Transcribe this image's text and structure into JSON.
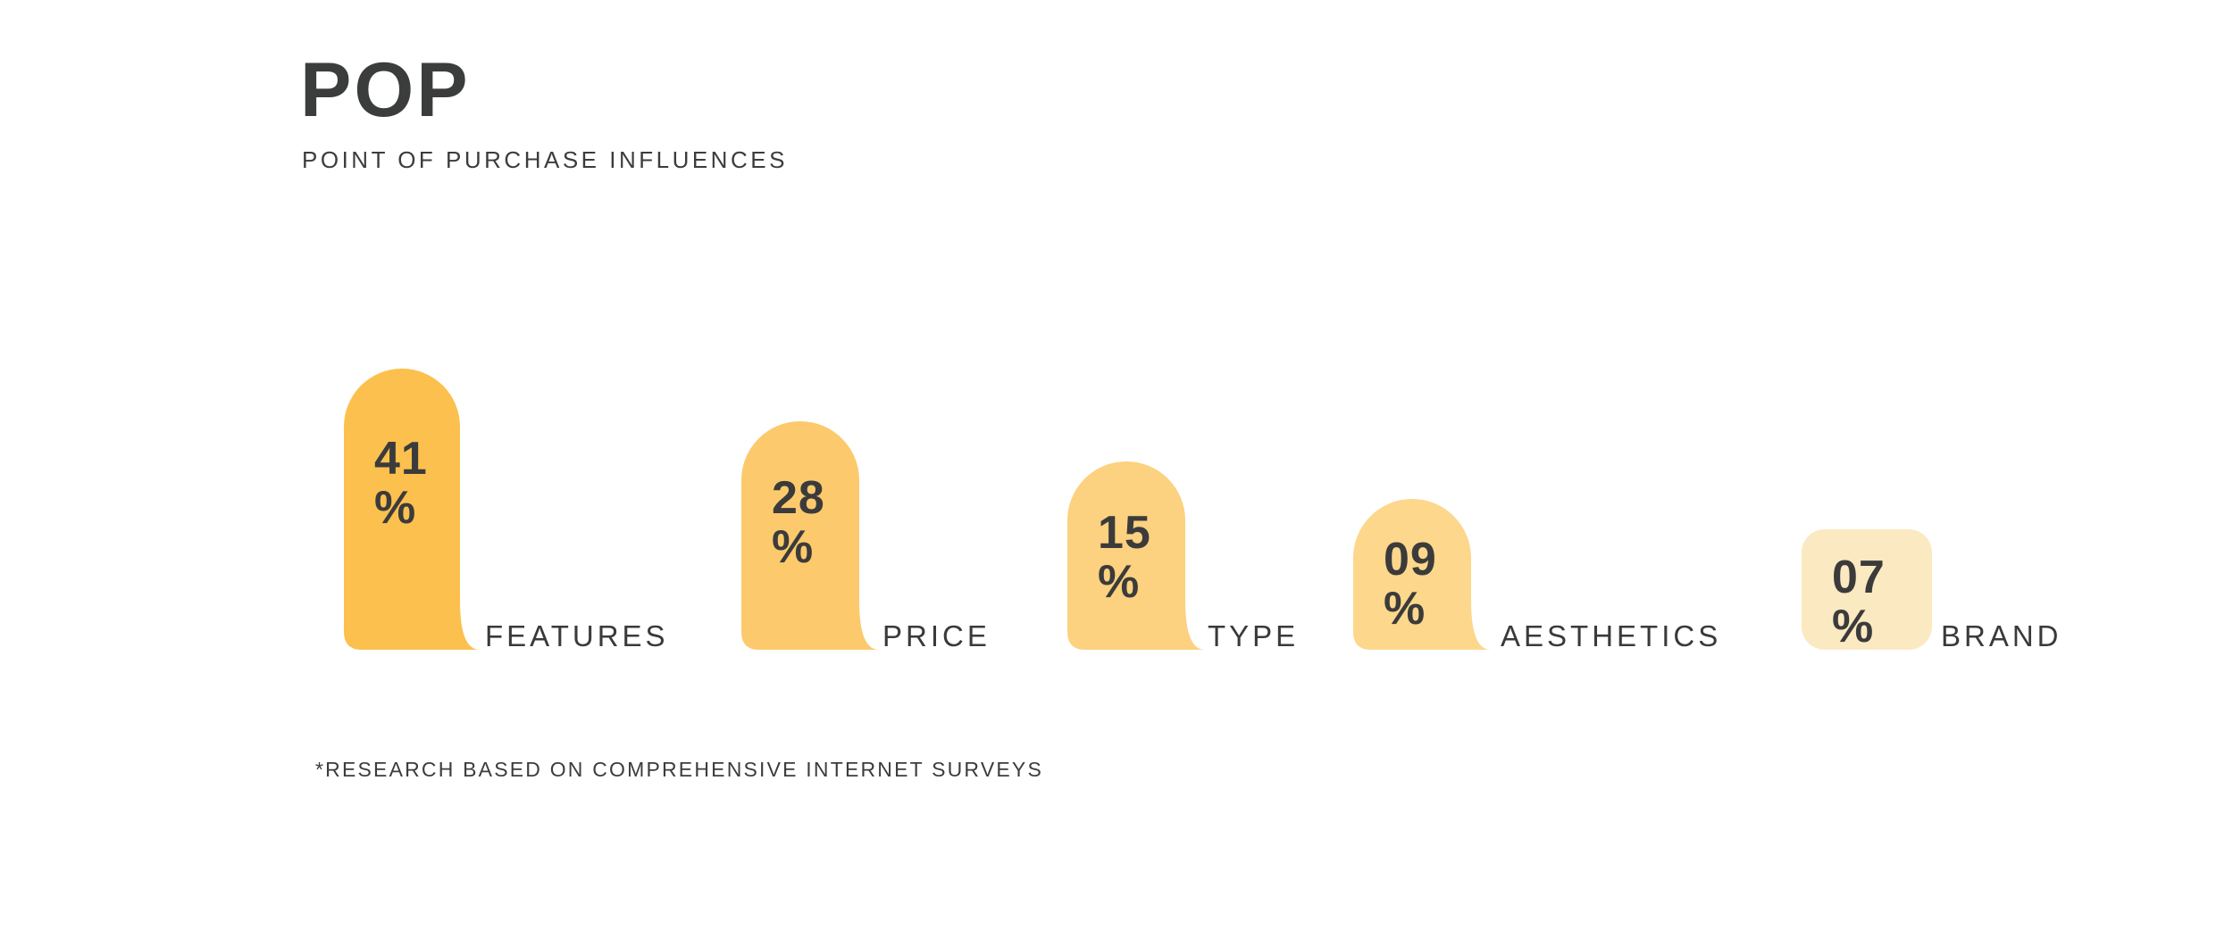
{
  "header": {
    "title": "POP",
    "subtitle": "POINT OF PURCHASE INFLUENCES"
  },
  "footnote": "*RESEARCH BASED ON COMPREHENSIVE INTERNET SURVEYS",
  "colors": {
    "background": "#FFFFFF",
    "text_dark": "#3B3D3C",
    "value_text": "#3B3B3B",
    "label_text": "#3A3A3A"
  },
  "chart_data": {
    "type": "bar",
    "title": "POP",
    "subtitle": "POINT OF PURCHASE INFLUENCES",
    "footnote": "*RESEARCH BASED ON COMPREHENSIVE INTERNET SURVEYS",
    "categories": [
      "FEATURES",
      "PRICE",
      "TYPE",
      "AESTHETICS",
      "BRAND"
    ],
    "values": [
      41,
      28,
      15,
      9,
      7
    ],
    "value_labels": [
      "41",
      "28",
      "15",
      "09",
      "07"
    ],
    "unit": "%",
    "bar_colors": [
      "#FCC04E",
      "#FCCA6C",
      "#FCD17F",
      "#FCD78C",
      "#FBE9C1"
    ],
    "orientation": "vertical",
    "grid": false,
    "legend": false,
    "value_position": "inside-top-left",
    "label_position": "right-of-bar-bottom"
  }
}
